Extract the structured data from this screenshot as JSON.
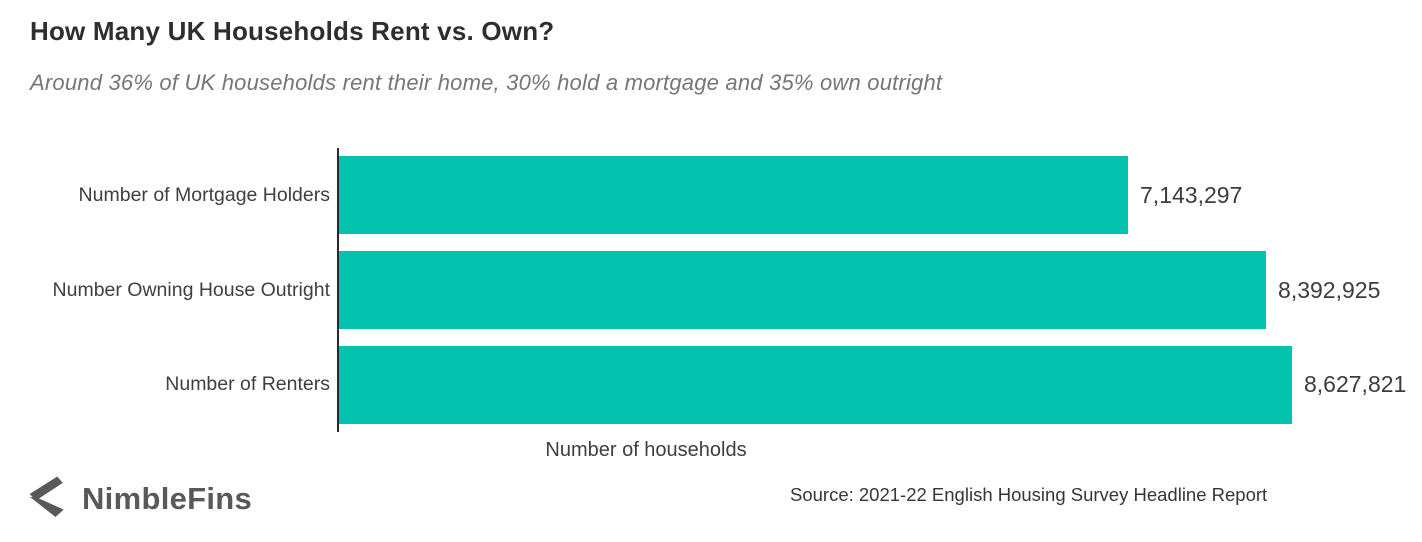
{
  "header": {
    "title": "How Many UK Households Rent vs. Own?",
    "subtitle": "Around 36% of UK households rent their home, 30% hold a mortgage and 35% own outright"
  },
  "chart_data": {
    "type": "bar",
    "orientation": "horizontal",
    "categories": [
      "Number of Mortgage Holders",
      "Number Owning House Outright",
      "Number of Renters"
    ],
    "values": [
      7143297,
      8392925,
      8627821
    ],
    "value_labels": [
      "7,143,297",
      "8,392,925",
      "8,627,821"
    ],
    "xlabel": "Number of households",
    "xlim": [
      0,
      8627821
    ],
    "bar_color": "#03c3ae",
    "axis_color": "#2a2a2a",
    "grid": false,
    "legend": "none"
  },
  "footer": {
    "logo_text": "NimbleFins",
    "source": "Source: 2021-22 English Housing Survey Headline Report"
  }
}
